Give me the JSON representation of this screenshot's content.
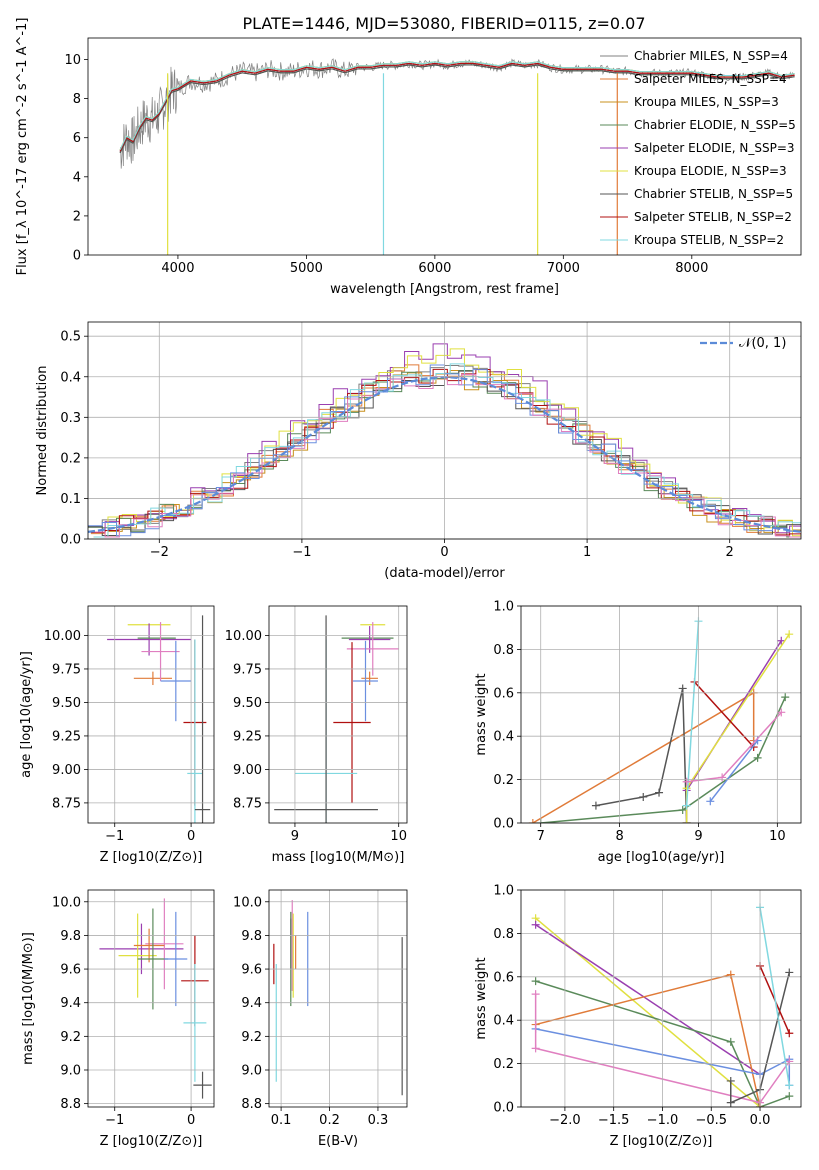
{
  "figure_title": "PLATE=1446, MJD=53080, FIBERID=0115, z=0.07",
  "chart_data": [
    {
      "type": "line",
      "name": "spectrum",
      "xlabel": "wavelength [Angstrom, rest frame]",
      "ylabel": "Flux [f_λ 10^-17 erg cm^-2 s^-1 A^-1]",
      "xlim": [
        3300,
        8850
      ],
      "ylim": [
        0,
        11.1
      ],
      "xticks": [
        4000,
        5000,
        6000,
        7000,
        8000
      ],
      "yticks": [
        0,
        2,
        4,
        6,
        8,
        10
      ],
      "grid": false,
      "legend_placement": "right",
      "data_flux": {
        "x": [
          3550,
          3600,
          3650,
          3700,
          3750,
          3800,
          3850,
          3900,
          3950,
          4000,
          4100,
          4200,
          4300,
          4400,
          4500,
          4600,
          4700,
          4800,
          4900,
          5000,
          5100,
          5200,
          5300,
          5400,
          5500,
          5600,
          5700,
          5800,
          5900,
          6000,
          6100,
          6200,
          6300,
          6400,
          6500,
          6600,
          6700,
          6800,
          6900,
          7000,
          7100,
          7200,
          7300,
          7400,
          7500,
          7600,
          7700,
          7800,
          7900,
          8000,
          8100,
          8200,
          8300,
          8400,
          8500,
          8600,
          8700,
          8800
        ],
        "y": [
          5.3,
          6.0,
          5.8,
          6.5,
          7.0,
          6.9,
          7.2,
          7.8,
          8.4,
          8.5,
          8.9,
          8.8,
          8.9,
          9.2,
          9.4,
          9.3,
          9.5,
          9.4,
          9.4,
          9.6,
          9.5,
          9.6,
          9.4,
          9.6,
          9.6,
          9.7,
          9.7,
          9.8,
          9.7,
          9.8,
          9.7,
          9.8,
          9.8,
          9.7,
          9.6,
          9.8,
          9.7,
          9.8,
          9.6,
          9.5,
          9.5,
          9.5,
          9.5,
          9.4,
          9.4,
          9.3,
          9.3,
          9.3,
          9.3,
          9.3,
          9.2,
          9.1,
          9.1,
          9.1,
          9.2,
          9.3,
          9.1,
          9.2
        ]
      },
      "series": [
        {
          "name": "Chabrier MILES, N_SSP=4",
          "color": "#808080"
        },
        {
          "name": "Salpeter MILES, N_SSP=4",
          "color": "#e07b39"
        },
        {
          "name": "Kroupa MILES, N_SSP=3",
          "color": "#c8901e"
        },
        {
          "name": "Chabrier ELODIE, N_SSP=5",
          "color": "#5a8a5a"
        },
        {
          "name": "Salpeter ELODIE, N_SSP=3",
          "color": "#9a3fb0"
        },
        {
          "name": "Kroupa ELODIE, N_SSP=3",
          "color": "#e0e040"
        },
        {
          "name": "Chabrier STELIB, N_SSP=5",
          "color": "#555555"
        },
        {
          "name": "Salpeter STELIB, N_SSP=2",
          "color": "#b01010"
        },
        {
          "name": "Kroupa STELIB, N_SSP=2",
          "color": "#80d8e0"
        }
      ]
    },
    {
      "type": "line",
      "name": "residual histogram",
      "xlabel": "(data-model)/error",
      "ylabel": "Normed distribution",
      "xlim": [
        -2.5,
        2.5
      ],
      "ylim": [
        0,
        0.535
      ],
      "xticks": [
        -2,
        -1,
        0,
        1,
        2
      ],
      "yticks": [
        0.0,
        0.1,
        0.2,
        0.3,
        0.4,
        0.5
      ],
      "grid": true,
      "legend_placement": "top-right",
      "gaussian_label": "𝒩(0, 1)",
      "series": [
        {
          "name": "Chabrier MILES",
          "color": "#808080",
          "peak": 0.47
        },
        {
          "name": "Salpeter MILES",
          "color": "#e07b39",
          "peak": 0.46
        },
        {
          "name": "Kroupa MILES",
          "color": "#c8901e",
          "peak": 0.44
        },
        {
          "name": "Chabrier ELODIE",
          "color": "#5a8a5a",
          "peak": 0.45
        },
        {
          "name": "Salpeter ELODIE",
          "color": "#9a3fb0",
          "peak": 0.51
        },
        {
          "name": "Kroupa ELODIE",
          "color": "#e0e040",
          "peak": 0.5
        },
        {
          "name": "Chabrier STELIB",
          "color": "#555555",
          "peak": 0.44
        },
        {
          "name": "Salpeter STELIB",
          "color": "#b01010",
          "peak": 0.45
        },
        {
          "name": "Kroupa STELIB",
          "color": "#80d8e0",
          "peak": 0.46
        },
        {
          "name": "",
          "color": "#6b8fe0",
          "peak": 0.45
        },
        {
          "name": "",
          "color": "#e07fc0",
          "peak": 0.44
        }
      ]
    },
    {
      "type": "scatter",
      "name": "age vs Z",
      "xlabel": "Z [log10(Z/Z⊙)]",
      "ylabel": "age  [log10(age/yr)]",
      "xlim": [
        -1.35,
        0.3
      ],
      "ylim": [
        8.6,
        10.22
      ],
      "xticks": [
        -1,
        0
      ],
      "yticks": [
        8.75,
        9.0,
        9.25,
        9.5,
        9.75,
        10.0
      ],
      "grid": true,
      "points": [
        {
          "x": -0.55,
          "xerr": 0.28,
          "y": 10.08,
          "yerr": 0.0,
          "color": "#e0e040"
        },
        {
          "x": -0.55,
          "xerr": 0.55,
          "y": 9.97,
          "yerr": 0.12,
          "color": "#9a3fb0"
        },
        {
          "x": -0.45,
          "xerr": 0.25,
          "y": 9.98,
          "yerr": 0.0,
          "color": "#5a8a5a"
        },
        {
          "x": -0.5,
          "xerr": 0.25,
          "y": 9.68,
          "yerr": 0.05,
          "color": "#e07b39"
        },
        {
          "x": -0.4,
          "xerr": 0.25,
          "y": 9.88,
          "yerr": 0.22,
          "color": "#e07fc0"
        },
        {
          "x": -0.2,
          "xerr": 0.2,
          "y": 9.66,
          "yerr": 0.3,
          "color": "#6b8fe0"
        },
        {
          "x": 0.05,
          "xerr": 0.15,
          "y": 9.35,
          "yerr": 0.62,
          "color": "#b01010"
        },
        {
          "x": 0.05,
          "xerr": 0.1,
          "y": 8.97,
          "yerr": 1.0,
          "color": "#80d8e0"
        },
        {
          "x": 0.15,
          "xerr": 0.1,
          "y": 8.7,
          "yerr": 1.45,
          "color": "#555555"
        }
      ]
    },
    {
      "type": "scatter",
      "name": "age vs mass",
      "xlabel": "mass [log10(M/M⊙)]",
      "ylabel": "",
      "xlim": [
        8.75,
        10.08
      ],
      "ylim": [
        8.6,
        10.22
      ],
      "xticks": [
        9,
        10
      ],
      "yticks": [
        8.75,
        9.0,
        9.25,
        9.5,
        9.75,
        10.0
      ],
      "grid": true,
      "points": [
        {
          "x": 9.75,
          "xerr": 0.12,
          "y": 10.08,
          "yerr": 0.0,
          "color": "#e0e040"
        },
        {
          "x": 9.7,
          "xerr": 0.25,
          "y": 9.98,
          "yerr": 0.0,
          "color": "#5a8a5a"
        },
        {
          "x": 9.72,
          "xerr": 0.2,
          "y": 9.97,
          "yerr": 0.1,
          "color": "#9a3fb0"
        },
        {
          "x": 9.75,
          "xerr": 0.25,
          "y": 9.9,
          "yerr": 0.2,
          "color": "#e07fc0"
        },
        {
          "x": 9.72,
          "xerr": 0.08,
          "y": 9.68,
          "yerr": 0.05,
          "color": "#e07b39"
        },
        {
          "x": 9.68,
          "xerr": 0.12,
          "y": 9.66,
          "yerr": 0.3,
          "color": "#6b8fe0"
        },
        {
          "x": 9.55,
          "xerr": 0.18,
          "y": 9.35,
          "yerr": 0.6,
          "color": "#b01010"
        },
        {
          "x": 9.3,
          "xerr": 0.3,
          "y": 8.97,
          "yerr": 1.0,
          "color": "#80d8e0"
        },
        {
          "x": 9.3,
          "xerr": 0.5,
          "y": 8.7,
          "yerr": 1.45,
          "color": "#555555"
        }
      ]
    },
    {
      "type": "line",
      "name": "mass weight vs age",
      "xlabel": "age  [log10(age/yr)]",
      "ylabel": "mass weight",
      "xlim": [
        6.75,
        10.3
      ],
      "ylim": [
        0,
        1.0
      ],
      "xticks": [
        7,
        8,
        9,
        10
      ],
      "yticks": [
        0.0,
        0.2,
        0.4,
        0.6,
        0.8,
        1.0
      ],
      "grid": true,
      "series": [
        {
          "color": "#e07b39",
          "x": [
            6.9,
            9.7,
            9.7
          ],
          "y": [
            0.0,
            0.6,
            0.38
          ]
        },
        {
          "color": "#555555",
          "x": [
            7.7,
            8.3,
            8.5,
            8.8,
            8.85
          ],
          "y": [
            0.08,
            0.12,
            0.14,
            0.62,
            0.0
          ]
        },
        {
          "color": "#5a8a5a",
          "x": [
            7.0,
            8.8,
            9.75,
            10.1
          ],
          "y": [
            0.0,
            0.06,
            0.3,
            0.58
          ]
        },
        {
          "color": "#9a3fb0",
          "x": [
            8.85,
            8.85,
            10.05
          ],
          "y": [
            0.0,
            0.15,
            0.84
          ]
        },
        {
          "color": "#e0e040",
          "x": [
            8.85,
            8.85,
            10.15
          ],
          "y": [
            0.0,
            0.16,
            0.87
          ]
        },
        {
          "color": "#b01010",
          "x": [
            8.95,
            9.7
          ],
          "y": [
            0.65,
            0.35
          ]
        },
        {
          "color": "#80d8e0",
          "x": [
            8.85,
            9.0
          ],
          "y": [
            0.08,
            0.93
          ]
        },
        {
          "color": "#6b8fe0",
          "x": [
            9.15,
            9.75
          ],
          "y": [
            0.1,
            0.38
          ]
        },
        {
          "color": "#e07fc0",
          "x": [
            8.85,
            9.3,
            10.05
          ],
          "y": [
            0.19,
            0.21,
            0.51
          ]
        }
      ]
    },
    {
      "type": "scatter",
      "name": "mass vs Z",
      "xlabel": "Z [log10(Z/Z⊙)]",
      "ylabel": "mass [log10(M/M⊙)]",
      "xlim": [
        -1.35,
        0.3
      ],
      "ylim": [
        8.78,
        10.07
      ],
      "xticks": [
        -1,
        0
      ],
      "yticks": [
        8.8,
        9.0,
        9.2,
        9.4,
        9.6,
        9.8,
        10.0
      ],
      "grid": true,
      "points": [
        {
          "x": -0.65,
          "xerr": 0.55,
          "y": 9.72,
          "yerr": 0.15,
          "color": "#9a3fb0"
        },
        {
          "x": -0.7,
          "xerr": 0.25,
          "y": 9.68,
          "yerr": 0.25,
          "color": "#e0e040"
        },
        {
          "x": -0.35,
          "xerr": 0.25,
          "y": 9.75,
          "yerr": 0.27,
          "color": "#e07fc0"
        },
        {
          "x": -0.55,
          "xerr": 0.2,
          "y": 9.74,
          "yerr": 0.1,
          "color": "#e07b39"
        },
        {
          "x": -0.5,
          "xerr": 0.2,
          "y": 9.66,
          "yerr": 0.3,
          "color": "#5a8a5a"
        },
        {
          "x": -0.2,
          "xerr": 0.15,
          "y": 9.66,
          "yerr": 0.28,
          "color": "#6b8fe0"
        },
        {
          "x": 0.05,
          "xerr": 0.18,
          "y": 9.53,
          "yerr": 0.27,
          "color": "#b01010"
        },
        {
          "x": 0.05,
          "xerr": 0.15,
          "y": 9.28,
          "yerr": 0.35,
          "color": "#80d8e0"
        },
        {
          "x": 0.15,
          "xerr": 0.12,
          "y": 8.91,
          "yerr": 0.08,
          "color": "#555555"
        }
      ]
    },
    {
      "type": "scatter",
      "name": "mass vs E(B-V)",
      "xlabel": "E(B-V)",
      "ylabel": "",
      "xlim": [
        0.075,
        0.36
      ],
      "ylim": [
        8.78,
        10.07
      ],
      "xticks": [
        0.1,
        0.2,
        0.3
      ],
      "yticks": [
        8.8,
        9.0,
        9.2,
        9.4,
        9.6,
        9.8,
        10.0
      ],
      "grid": true,
      "points": [
        {
          "x": 0.085,
          "y": 9.63,
          "yerr": 0.12,
          "color": "#b01010"
        },
        {
          "x": 0.09,
          "y": 9.28,
          "yerr": 0.35,
          "color": "#80d8e0"
        },
        {
          "x": 0.12,
          "y": 9.75,
          "yerr": 0.15,
          "color": "#9a3fb0"
        },
        {
          "x": 0.12,
          "y": 9.66,
          "yerr": 0.28,
          "color": "#5a8a5a"
        },
        {
          "x": 0.123,
          "y": 9.74,
          "yerr": 0.27,
          "color": "#e07fc0"
        },
        {
          "x": 0.125,
          "y": 9.68,
          "yerr": 0.25,
          "color": "#e0e040"
        },
        {
          "x": 0.13,
          "y": 9.7,
          "yerr": 0.1,
          "color": "#e07b39"
        },
        {
          "x": 0.155,
          "y": 9.66,
          "yerr": 0.28,
          "color": "#6b8fe0"
        },
        {
          "x": 0.35,
          "y": 9.32,
          "yerr": 0.47,
          "color": "#555555"
        }
      ]
    },
    {
      "type": "line",
      "name": "mass weight vs Z",
      "xlabel": "Z [log10(Z/Z⊙)]",
      "ylabel": "mass weight",
      "xlim": [
        -2.45,
        0.42
      ],
      "ylim": [
        0,
        1.0
      ],
      "xticks": [
        -2.0,
        -1.5,
        -1.0,
        -0.5,
        0.0
      ],
      "grid": true,
      "yticks": [
        0.0,
        0.2,
        0.4,
        0.6,
        0.8,
        1.0
      ],
      "series": [
        {
          "color": "#e0e040",
          "x": [
            -2.3,
            0.0
          ],
          "y": [
            0.87,
            0.0
          ]
        },
        {
          "color": "#9a3fb0",
          "x": [
            -2.3,
            0.0
          ],
          "y": [
            0.84,
            0.15
          ]
        },
        {
          "color": "#5a8a5a",
          "x": [
            -2.3,
            -0.3,
            0.0,
            0.3
          ],
          "y": [
            0.58,
            0.3,
            0.0,
            0.05
          ]
        },
        {
          "color": "#e07b39",
          "x": [
            -2.3,
            -0.3,
            0.0
          ],
          "y": [
            0.38,
            0.61,
            0.0
          ]
        },
        {
          "color": "#6b8fe0",
          "x": [
            -2.3,
            0.0,
            0.3,
            0.3
          ],
          "y": [
            0.36,
            0.15,
            0.22,
            0.1
          ]
        },
        {
          "color": "#e07fc0",
          "x": [
            -2.3,
            -2.3,
            0.0,
            0.3
          ],
          "y": [
            0.52,
            0.27,
            0.02,
            0.21
          ]
        },
        {
          "color": "#555555",
          "x": [
            -0.3,
            -0.3,
            0.0,
            0.3
          ],
          "y": [
            0.12,
            0.02,
            0.08,
            0.62
          ]
        },
        {
          "color": "#b01010",
          "x": [
            0.0,
            0.3
          ],
          "y": [
            0.65,
            0.34
          ]
        },
        {
          "color": "#80d8e0",
          "x": [
            0.0,
            0.3
          ],
          "y": [
            0.92,
            0.1
          ]
        }
      ]
    }
  ]
}
